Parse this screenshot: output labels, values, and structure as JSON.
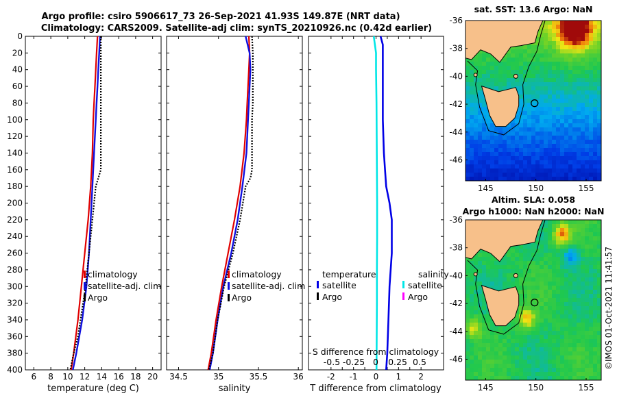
{
  "header": {
    "line1": "Argo profile: csiro 5906617_73 26-Sep-2021 41.93S 149.87E (NRT data)",
    "line2": "Climatology: CARS2009. Satellite-adj clim: synTS_20210926.nc (0.42d earlier)"
  },
  "watermark": "©IMOS 01-Oct-2021 11:41:57",
  "colors": {
    "climatology": "#e00000",
    "satellite": "#1010e0",
    "argo": "#000000",
    "t_satellite": "#0000e6",
    "s_satellite": "#00e6e6",
    "s_argo": "#ff00ff",
    "land": "#f7c08a"
  },
  "chart_data": [
    {
      "id": "temperature",
      "type": "line",
      "xlabel": "temperature (deg C)",
      "ylabel": "",
      "xlim": [
        5,
        21
      ],
      "ylim": [
        0,
        400
      ],
      "xticks": [
        6,
        8,
        10,
        12,
        14,
        16,
        18,
        20
      ],
      "yticks": [
        0,
        20,
        40,
        60,
        80,
        100,
        120,
        140,
        160,
        180,
        200,
        220,
        240,
        260,
        280,
        300,
        320,
        340,
        360,
        380,
        400
      ],
      "legend": [
        "climatology",
        "satellite-adj. clim",
        "Argo"
      ],
      "series": [
        {
          "name": "climatology",
          "depth": [
            0,
            20,
            40,
            60,
            80,
            100,
            140,
            180,
            220,
            260,
            300,
            340,
            380,
            400
          ],
          "values": [
            13.5,
            13.4,
            13.3,
            13.2,
            13.1,
            13.0,
            12.9,
            12.7,
            12.4,
            12.0,
            11.6,
            11.2,
            10.7,
            10.4
          ]
        },
        {
          "name": "satellite-adj. clim",
          "depth": [
            0,
            20,
            40,
            60,
            80,
            100,
            140,
            180,
            220,
            260,
            300,
            340,
            380,
            400
          ],
          "values": [
            13.8,
            13.7,
            13.6,
            13.5,
            13.4,
            13.3,
            13.1,
            12.9,
            12.7,
            12.5,
            12.2,
            11.7,
            11.0,
            10.6
          ]
        },
        {
          "name": "Argo",
          "depth": [
            0,
            20,
            40,
            60,
            80,
            100,
            120,
            140,
            160,
            170,
            180,
            200,
            240,
            280,
            300,
            320,
            340,
            360,
            380,
            400
          ],
          "values": [
            13.9,
            13.9,
            13.9,
            13.9,
            13.9,
            13.9,
            13.9,
            13.9,
            13.9,
            13.6,
            13.3,
            13.1,
            12.7,
            12.3,
            12.1,
            11.8,
            11.5,
            11.2,
            10.7,
            10.3
          ]
        }
      ]
    },
    {
      "id": "salinity",
      "type": "line",
      "xlabel": "salinity",
      "xlim": [
        34.35,
        36.05
      ],
      "ylim": [
        0,
        400
      ],
      "xticks": [
        34.5,
        35,
        35.5,
        36
      ],
      "legend": [
        "climatology",
        "satellite-adj. clim",
        "Argo"
      ],
      "series": [
        {
          "name": "climatology",
          "depth": [
            0,
            20,
            40,
            60,
            80,
            100,
            140,
            180,
            220,
            260,
            300,
            340,
            380,
            400
          ],
          "values": [
            35.38,
            35.39,
            35.38,
            35.37,
            35.36,
            35.35,
            35.32,
            35.27,
            35.2,
            35.12,
            35.04,
            34.97,
            34.91,
            34.87
          ]
        },
        {
          "name": "satellite-adj. clim",
          "depth": [
            0,
            8,
            20,
            40,
            60,
            80,
            100,
            140,
            180,
            220,
            260,
            300,
            340,
            380,
            400
          ],
          "values": [
            35.34,
            35.36,
            35.39,
            35.4,
            35.39,
            35.38,
            35.37,
            35.35,
            35.3,
            35.24,
            35.16,
            35.06,
            34.99,
            34.93,
            34.89
          ]
        },
        {
          "name": "Argo",
          "depth": [
            0,
            20,
            40,
            60,
            80,
            100,
            140,
            160,
            170,
            180,
            220,
            260,
            300,
            340,
            380,
            400
          ],
          "values": [
            35.42,
            35.43,
            35.43,
            35.43,
            35.43,
            35.42,
            35.42,
            35.42,
            35.4,
            35.34,
            35.27,
            35.18,
            35.07,
            34.99,
            34.93,
            34.88
          ]
        }
      ]
    },
    {
      "id": "difference",
      "type": "line",
      "xlabel": "T difference from climatology",
      "xlabel_top": "S difference from climatology",
      "xlim": [
        -3,
        3
      ],
      "ylim": [
        0,
        400
      ],
      "xticks": [
        -2,
        -1.5,
        -1,
        -0.5,
        0,
        0.5,
        1,
        1.5,
        2
      ],
      "xticklabels": [
        "-2",
        "",
        "-1",
        "",
        "0",
        "",
        "1",
        "",
        "2"
      ],
      "s_ticks": [
        -0.5,
        -0.25,
        0,
        0.25,
        0.5
      ],
      "s_ticklabels": [
        "-0.5",
        "-0.25",
        "0",
        "0.25",
        "0.5"
      ],
      "legend_temperature": {
        "title": "temperature",
        "items": [
          "satellite",
          "Argo"
        ]
      },
      "legend_salinity": {
        "title": "salinity",
        "items": [
          "satellite",
          "Argo"
        ]
      },
      "series": [
        {
          "name": "temperature satellite",
          "depth": [
            0,
            10,
            20,
            40,
            60,
            80,
            100,
            140,
            160,
            180,
            200,
            220,
            260,
            300,
            340,
            380,
            400
          ],
          "values": [
            0.2,
            0.3,
            0.3,
            0.3,
            0.3,
            0.3,
            0.3,
            0.35,
            0.4,
            0.45,
            0.6,
            0.7,
            0.7,
            0.6,
            0.55,
            0.5,
            0.45
          ]
        },
        {
          "name": "salinity satellite",
          "depth": [
            0,
            20,
            40,
            80,
            120,
            160,
            200,
            240,
            280,
            320,
            360,
            400
          ],
          "values": [
            -0.1,
            0.0,
            0.0,
            0.02,
            0.03,
            0.04,
            0.05,
            0.05,
            0.04,
            0.04,
            0.03,
            0.02
          ]
        }
      ]
    },
    {
      "id": "sst_map",
      "type": "heatmap",
      "title": "sat. SST: 13.6 Argo: NaN",
      "xlim": [
        143,
        156.5
      ],
      "ylim": [
        -47.5,
        -36
      ],
      "xticks": [
        145,
        150,
        155
      ],
      "yticks": [
        -36,
        -38,
        -40,
        -42,
        -44,
        -46
      ],
      "marker": {
        "lon": 149.87,
        "lat": -41.93
      }
    },
    {
      "id": "sla_map",
      "type": "heatmap",
      "title_line1": "Altim. SLA: 0.058",
      "title_line2": "Argo h1000: NaN h2000: NaN",
      "xlim": [
        143,
        156.5
      ],
      "ylim": [
        -47.5,
        -36
      ],
      "xticks": [
        145,
        150,
        155
      ],
      "yticks": [
        -36,
        -38,
        -40,
        -42,
        -44,
        -46
      ],
      "marker": {
        "lon": 149.87,
        "lat": -41.93
      }
    }
  ]
}
